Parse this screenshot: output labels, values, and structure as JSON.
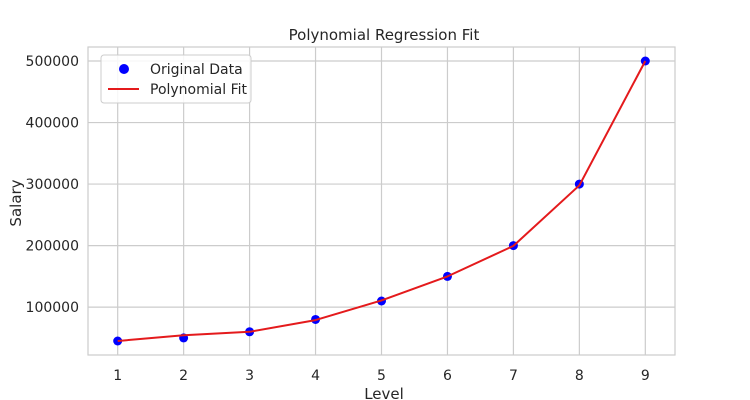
{
  "chart_data": {
    "type": "scatter",
    "title": "Polynomial Regression Fit",
    "xlabel": "Level",
    "ylabel": "Salary",
    "xlim": [
      0.55,
      9.45
    ],
    "ylim": [
      22250,
      522750
    ],
    "xticks": [
      1,
      2,
      3,
      4,
      5,
      6,
      7,
      8,
      9
    ],
    "yticks": [
      100000,
      200000,
      300000,
      400000,
      500000
    ],
    "grid": true,
    "legend": {
      "placement": "upper-left",
      "entries": [
        "Original Data",
        "Polynomial Fit"
      ]
    },
    "colors": {
      "points": "#0000ff",
      "fit_line": "#e41a1c",
      "grid": "#cccccc",
      "frame": "#cccccc"
    },
    "series": [
      {
        "name": "Original Data",
        "kind": "scatter",
        "x": [
          1,
          2,
          3,
          4,
          5,
          6,
          7,
          8,
          9
        ],
        "y": [
          45000,
          50000,
          60000,
          80000,
          110000,
          150000,
          200000,
          300000,
          500000
        ]
      },
      {
        "name": "Polynomial Fit",
        "kind": "line",
        "x": [
          1,
          2,
          3,
          4,
          5,
          6,
          7,
          8,
          9
        ],
        "y": [
          45000,
          54500,
          60000,
          79000,
          111000,
          150000,
          199500,
          298000,
          500000
        ]
      }
    ]
  }
}
